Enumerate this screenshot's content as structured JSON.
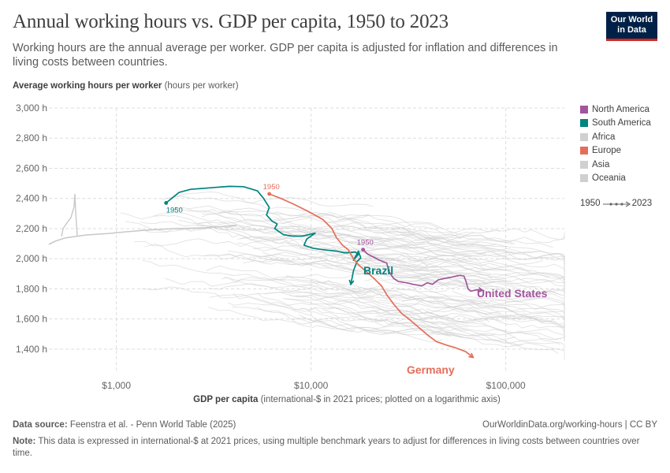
{
  "header": {
    "title": "Annual working hours vs. GDP per capita, 1950 to 2023",
    "subtitle": "Working hours are the annual average per worker. GDP per capita is adjusted for inflation and differences in living costs between countries."
  },
  "logo": {
    "line1": "Our World",
    "line2": "in Data"
  },
  "axes": {
    "y_title": "Average working hours per worker",
    "y_unit": " (hours per worker)",
    "x_title": "GDP per capita",
    "x_unit": " (international-$ in 2021 prices; plotted on a logarithmic axis)"
  },
  "legend": {
    "items": [
      {
        "label": "North America",
        "color": "#a2559c"
      },
      {
        "label": "South America",
        "color": "#00847e"
      },
      {
        "label": "Africa",
        "color": "#d0d0d0"
      },
      {
        "label": "Europe",
        "color": "#e56e5a"
      },
      {
        "label": "Asia",
        "color": "#d0d0d0"
      },
      {
        "label": "Oceania",
        "color": "#d0d0d0"
      }
    ],
    "timeline_start": "1950",
    "timeline_end": "2023"
  },
  "footer": {
    "source_label": "Data source:",
    "source_text": " Feenstra et al. - Penn World Table (2025)",
    "url": "OurWorldinData.org/working-hours | CC BY",
    "note_label": "Note:",
    "note_text": " This data is expressed in international-$ at 2021 prices, using multiple benchmark years to adjust for differences in living costs between countries over time."
  },
  "chart_data": {
    "type": "scatter",
    "title": "Annual working hours vs. GDP per capita, 1950 to 2023",
    "xlabel": "GDP per capita",
    "ylabel": "Average working hours per worker",
    "xscale": "log",
    "xlim": [
      450,
      200000
    ],
    "ylim": [
      1300,
      3000
    ],
    "x_ticks": [
      {
        "value": 1000,
        "label": "$1,000"
      },
      {
        "value": 10000,
        "label": "$10,000"
      },
      {
        "value": 100000,
        "label": "$100,000"
      }
    ],
    "y_ticks": [
      {
        "value": 1400,
        "label": "1,400 h"
      },
      {
        "value": 1600,
        "label": "1,600 h"
      },
      {
        "value": 1800,
        "label": "1,800 h"
      },
      {
        "value": 2000,
        "label": "2,000 h"
      },
      {
        "value": 2200,
        "label": "2,200 h"
      },
      {
        "value": 2400,
        "label": "2,400 h"
      },
      {
        "value": 2600,
        "label": "2,600 h"
      },
      {
        "value": 2800,
        "label": "2,800 h"
      },
      {
        "value": 3000,
        "label": "3,000 h"
      }
    ],
    "series": [
      {
        "name": "Brazil",
        "region": "South America",
        "color": "#00847e",
        "start_label": "1950",
        "points": [
          [
            1800,
            2370
          ],
          [
            1900,
            2395
          ],
          [
            2100,
            2440
          ],
          [
            2400,
            2460
          ],
          [
            3000,
            2470
          ],
          [
            3800,
            2480
          ],
          [
            4500,
            2478
          ],
          [
            5300,
            2450
          ],
          [
            5700,
            2400
          ],
          [
            6100,
            2340
          ],
          [
            5900,
            2290
          ],
          [
            6300,
            2250
          ],
          [
            6700,
            2230
          ],
          [
            6500,
            2200
          ],
          [
            7200,
            2160
          ],
          [
            8000,
            2150
          ],
          [
            9000,
            2150
          ],
          [
            10500,
            2170
          ],
          [
            9500,
            2130
          ],
          [
            9200,
            2090
          ],
          [
            10200,
            2070
          ],
          [
            11500,
            2060
          ],
          [
            13500,
            2050
          ],
          [
            14800,
            2040
          ],
          [
            15800,
            2040
          ],
          [
            16800,
            2045
          ],
          [
            17500,
            2030
          ],
          [
            16500,
            1990
          ],
          [
            17500,
            2050
          ],
          [
            18000,
            2005
          ],
          [
            17200,
            1980
          ],
          [
            16500,
            1920
          ],
          [
            16000,
            1830
          ]
        ]
      },
      {
        "name": "Germany",
        "region": "Europe",
        "color": "#e56e5a",
        "start_label": "1950",
        "points": [
          [
            6100,
            2430
          ],
          [
            7000,
            2400
          ],
          [
            8200,
            2360
          ],
          [
            9800,
            2310
          ],
          [
            11500,
            2260
          ],
          [
            12800,
            2200
          ],
          [
            13500,
            2140
          ],
          [
            14500,
            2090
          ],
          [
            15500,
            2060
          ],
          [
            16500,
            2000
          ],
          [
            17500,
            1960
          ],
          [
            19000,
            1920
          ],
          [
            21000,
            1870
          ],
          [
            23000,
            1820
          ],
          [
            24500,
            1760
          ],
          [
            26500,
            1700
          ],
          [
            29000,
            1640
          ],
          [
            32500,
            1590
          ],
          [
            36000,
            1540
          ],
          [
            40000,
            1490
          ],
          [
            44000,
            1450
          ],
          [
            50000,
            1425
          ],
          [
            55000,
            1410
          ],
          [
            59000,
            1395
          ],
          [
            62000,
            1385
          ],
          [
            65000,
            1365
          ],
          [
            68000,
            1345
          ]
        ]
      },
      {
        "name": "United States",
        "region": "North America",
        "color": "#a2559c",
        "start_label": "1950",
        "points": [
          [
            18500,
            2060
          ],
          [
            19500,
            2030
          ],
          [
            21000,
            2010
          ],
          [
            22500,
            1990
          ],
          [
            24500,
            1970
          ],
          [
            25000,
            1920
          ],
          [
            26500,
            1870
          ],
          [
            28000,
            1850
          ],
          [
            31000,
            1840
          ],
          [
            33500,
            1830
          ],
          [
            37000,
            1820
          ],
          [
            39500,
            1840
          ],
          [
            42000,
            1830
          ],
          [
            45000,
            1860
          ],
          [
            49000,
            1870
          ],
          [
            54000,
            1880
          ],
          [
            58000,
            1890
          ],
          [
            61000,
            1885
          ],
          [
            62500,
            1850
          ],
          [
            64000,
            1800
          ],
          [
            66000,
            1785
          ],
          [
            69000,
            1790
          ],
          [
            72000,
            1795
          ],
          [
            76000,
            1790
          ]
        ]
      }
    ],
    "annotations": [
      {
        "text": "Brazil",
        "series": "Brazil"
      },
      {
        "text": "Germany",
        "series": "Germany"
      },
      {
        "text": "United States",
        "series": "United States"
      }
    ]
  }
}
